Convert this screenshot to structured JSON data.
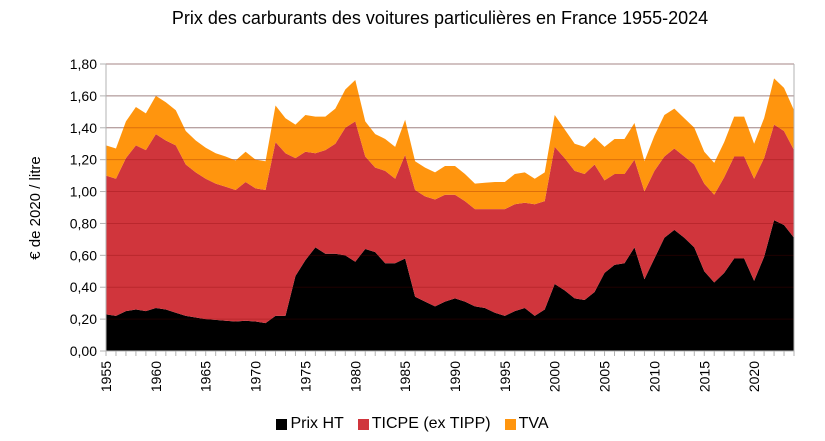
{
  "chart_data": {
    "type": "area",
    "stacked": true,
    "title": "Prix des carburants des voitures particulières en France 1955-2024",
    "xlabel": "",
    "ylabel": "€ de 2020 / litre",
    "xlim": [
      1955,
      2024
    ],
    "ylim": [
      0,
      1.8
    ],
    "yticks": [
      "0,00",
      "0,20",
      "0,40",
      "0,60",
      "0,80",
      "1,00",
      "1,20",
      "1,40",
      "1,60",
      "1,80"
    ],
    "ytick_values": [
      0,
      0.2,
      0.4,
      0.6,
      0.8,
      1.0,
      1.2,
      1.4,
      1.6,
      1.8
    ],
    "xticks": [
      "1955",
      "1960",
      "1965",
      "1970",
      "1975",
      "1980",
      "1985",
      "1990",
      "1995",
      "2000",
      "2005",
      "2010",
      "2015",
      "2020"
    ],
    "xtick_values": [
      1955,
      1960,
      1965,
      1970,
      1975,
      1980,
      1985,
      1990,
      1995,
      2000,
      2005,
      2010,
      2015,
      2020
    ],
    "grid": true,
    "legend_position": "bottom",
    "x": [
      1955,
      1956,
      1957,
      1958,
      1959,
      1960,
      1961,
      1962,
      1963,
      1964,
      1965,
      1966,
      1967,
      1968,
      1969,
      1970,
      1971,
      1972,
      1973,
      1974,
      1975,
      1976,
      1977,
      1978,
      1979,
      1980,
      1981,
      1982,
      1983,
      1984,
      1985,
      1986,
      1987,
      1988,
      1989,
      1990,
      1991,
      1992,
      1993,
      1994,
      1995,
      1996,
      1997,
      1998,
      1999,
      2000,
      2001,
      2002,
      2003,
      2004,
      2005,
      2006,
      2007,
      2008,
      2009,
      2010,
      2011,
      2012,
      2013,
      2014,
      2015,
      2016,
      2017,
      2018,
      2019,
      2020,
      2021,
      2022,
      2023,
      2024
    ],
    "series": [
      {
        "name": "Prix HT",
        "color": "#000000",
        "values": [
          0.23,
          0.22,
          0.25,
          0.26,
          0.25,
          0.27,
          0.26,
          0.24,
          0.22,
          0.21,
          0.2,
          0.195,
          0.19,
          0.185,
          0.19,
          0.185,
          0.175,
          0.22,
          0.22,
          0.47,
          0.57,
          0.65,
          0.61,
          0.61,
          0.6,
          0.56,
          0.64,
          0.62,
          0.55,
          0.55,
          0.58,
          0.34,
          0.31,
          0.28,
          0.31,
          0.33,
          0.31,
          0.28,
          0.27,
          0.24,
          0.22,
          0.25,
          0.27,
          0.22,
          0.26,
          0.42,
          0.38,
          0.33,
          0.32,
          0.37,
          0.49,
          0.54,
          0.55,
          0.65,
          0.45,
          0.58,
          0.71,
          0.76,
          0.71,
          0.65,
          0.5,
          0.43,
          0.49,
          0.58,
          0.58,
          0.44,
          0.59,
          0.82,
          0.79,
          0.71
        ]
      },
      {
        "name": "TICPE (ex TIPP)",
        "color": "#d0353c",
        "values": [
          0.87,
          0.86,
          0.96,
          1.03,
          1.01,
          1.09,
          1.06,
          1.05,
          0.95,
          0.91,
          0.88,
          0.855,
          0.84,
          0.825,
          0.87,
          0.835,
          0.835,
          1.09,
          1.02,
          0.74,
          0.68,
          0.59,
          0.65,
          0.69,
          0.8,
          0.88,
          0.58,
          0.53,
          0.58,
          0.53,
          0.65,
          0.67,
          0.66,
          0.67,
          0.67,
          0.65,
          0.63,
          0.61,
          0.62,
          0.65,
          0.67,
          0.67,
          0.66,
          0.7,
          0.68,
          0.86,
          0.83,
          0.8,
          0.79,
          0.8,
          0.58,
          0.57,
          0.56,
          0.55,
          0.55,
          0.55,
          0.51,
          0.51,
          0.51,
          0.52,
          0.55,
          0.55,
          0.6,
          0.64,
          0.64,
          0.64,
          0.62,
          0.6,
          0.59,
          0.55
        ]
      },
      {
        "name": "TVA",
        "color": "#ff950e",
        "values": [
          0.19,
          0.19,
          0.23,
          0.24,
          0.23,
          0.24,
          0.24,
          0.22,
          0.21,
          0.2,
          0.195,
          0.19,
          0.19,
          0.185,
          0.19,
          0.18,
          0.18,
          0.23,
          0.22,
          0.21,
          0.23,
          0.23,
          0.21,
          0.22,
          0.24,
          0.26,
          0.22,
          0.21,
          0.2,
          0.2,
          0.22,
          0.18,
          0.18,
          0.17,
          0.18,
          0.18,
          0.17,
          0.16,
          0.165,
          0.17,
          0.17,
          0.19,
          0.19,
          0.16,
          0.18,
          0.2,
          0.18,
          0.17,
          0.17,
          0.17,
          0.21,
          0.22,
          0.22,
          0.23,
          0.19,
          0.22,
          0.26,
          0.25,
          0.24,
          0.23,
          0.2,
          0.2,
          0.22,
          0.25,
          0.25,
          0.22,
          0.25,
          0.29,
          0.27,
          0.25
        ]
      }
    ]
  }
}
